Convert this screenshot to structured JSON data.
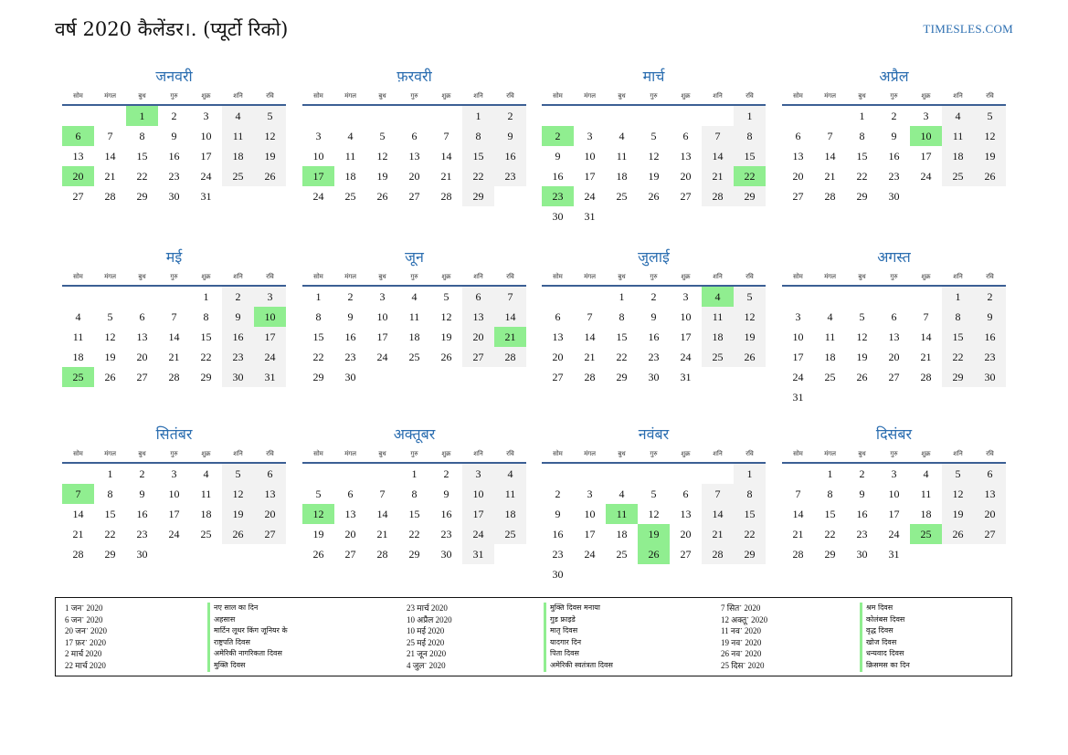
{
  "header": {
    "title": "वर्ष 2020 कैलेंडर।. (प्यूर्टो रिको)",
    "site": "TIMESLES.COM"
  },
  "weekday_labels": [
    "सोम",
    "मंगल",
    "बुध",
    "गुरु",
    "शुक्र",
    "शनि",
    "रवि"
  ],
  "months": [
    {
      "name": "जनवरी",
      "offset": 2,
      "days": 31,
      "holidays": [
        1,
        6,
        20
      ]
    },
    {
      "name": "फ़रवरी",
      "offset": 5,
      "days": 29,
      "holidays": [
        17
      ]
    },
    {
      "name": "मार्च",
      "offset": 6,
      "days": 31,
      "holidays": [
        2,
        22,
        23
      ]
    },
    {
      "name": "अप्रैल",
      "offset": 2,
      "days": 30,
      "holidays": [
        10
      ]
    },
    {
      "name": "मई",
      "offset": 4,
      "days": 31,
      "holidays": [
        10,
        25
      ]
    },
    {
      "name": "जून",
      "offset": 0,
      "days": 30,
      "holidays": [
        21
      ]
    },
    {
      "name": "जुलाई",
      "offset": 2,
      "days": 31,
      "holidays": [
        4
      ]
    },
    {
      "name": "अगस्त",
      "offset": 5,
      "days": 31,
      "holidays": []
    },
    {
      "name": "सितंबर",
      "offset": 1,
      "days": 30,
      "holidays": [
        7
      ]
    },
    {
      "name": "अक्तूबर",
      "offset": 3,
      "days": 31,
      "holidays": [
        12
      ]
    },
    {
      "name": "नवंबर",
      "offset": 6,
      "days": 30,
      "holidays": [
        11,
        19,
        26
      ]
    },
    {
      "name": "दिसंबर",
      "offset": 1,
      "days": 31,
      "holidays": [
        25
      ]
    }
  ],
  "legend": [
    {
      "date": "1 जनॱ 2020",
      "name": "नए साल का दिन"
    },
    {
      "date": "6 जनॱ 2020",
      "name": "अहसास"
    },
    {
      "date": "20 जनॱ 2020",
      "name": "मार्टिन लूथर किंग जूनियर के"
    },
    {
      "date": "17 फ़रॱ 2020",
      "name": "राष्ट्रपति दिवस"
    },
    {
      "date": "2 मार्च 2020",
      "name": "अमेरिकी नागरिकता दिवस"
    },
    {
      "date": "22 मार्च 2020",
      "name": "मुक्ति दिवस"
    },
    {
      "date": "23 मार्च 2020",
      "name": "मुक्ति दिवस मनाया"
    },
    {
      "date": "10 अप्रैल 2020",
      "name": "गुड फ्राइडे"
    },
    {
      "date": "10 मई 2020",
      "name": "मातृ दिवस"
    },
    {
      "date": "25 मई 2020",
      "name": "यादगार दिन"
    },
    {
      "date": "21 जून 2020",
      "name": "पिता दिवस"
    },
    {
      "date": "4 जुलॱ 2020",
      "name": "अमेरिकी स्वतंत्रता दिवस"
    },
    {
      "date": "7 सितॱ 2020",
      "name": "श्रम दिवस"
    },
    {
      "date": "12 अक्तूॱ 2020",
      "name": "कोलंबस दिवस"
    },
    {
      "date": "11 नवॱ 2020",
      "name": "वृद्ध दिवस"
    },
    {
      "date": "19 नवॱ 2020",
      "name": "खोज दिवस"
    },
    {
      "date": "26 नवॱ 2020",
      "name": "धन्यवाद दिवस"
    },
    {
      "date": "25 दिसॱ 2020",
      "name": "क्रिसमस का दिन"
    }
  ],
  "colors": {
    "accent": "#2a6db0",
    "holiday": "#90ee90",
    "weekend": "#f2f2f2",
    "rule": "#3b5f94"
  }
}
